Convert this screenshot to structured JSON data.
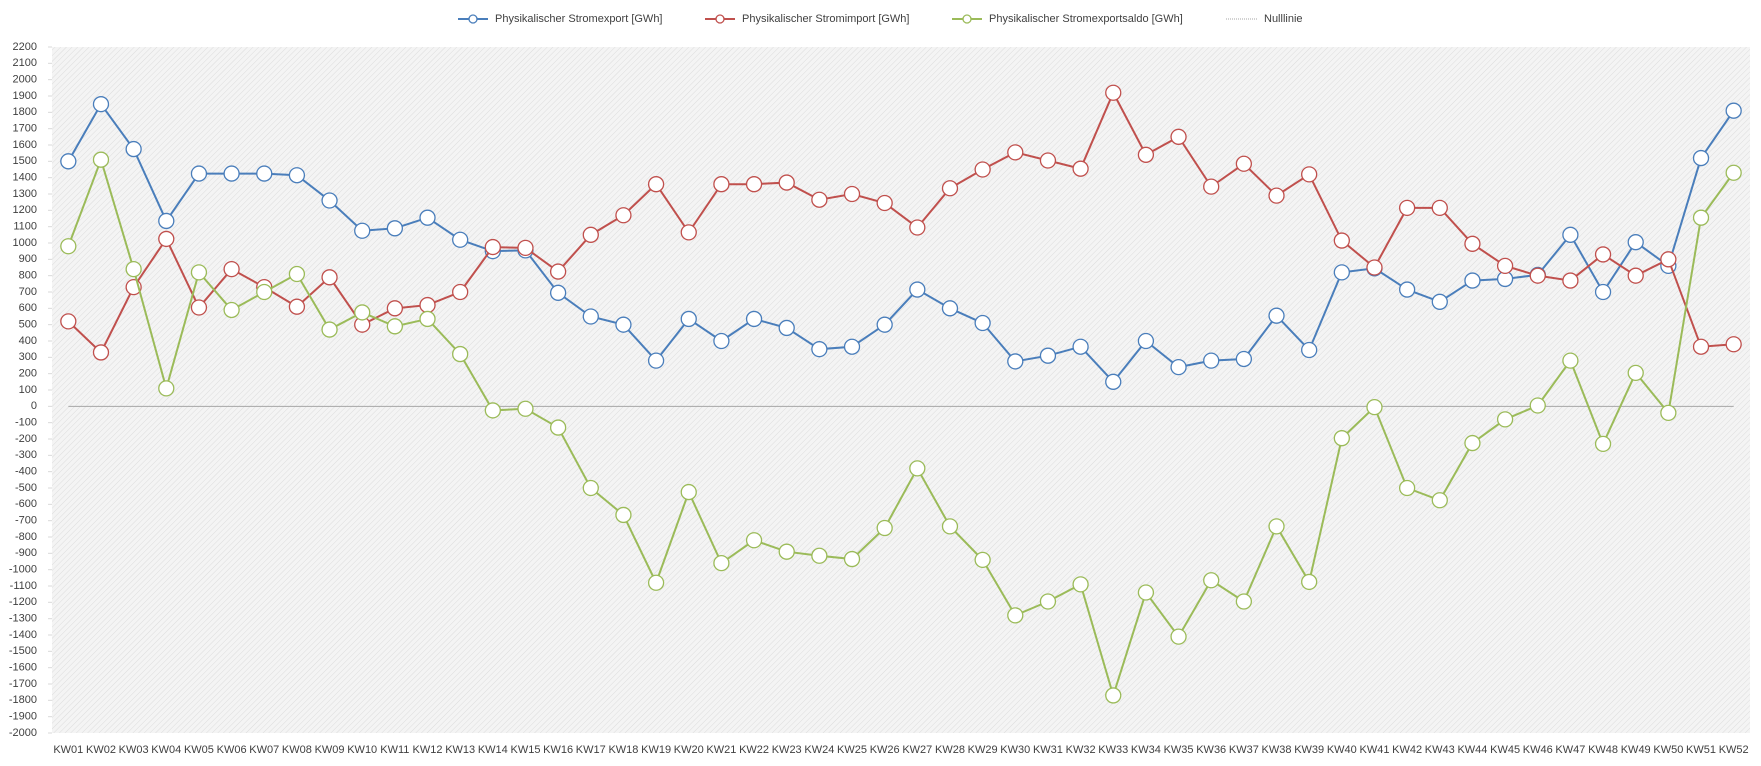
{
  "chart_data": {
    "type": "line",
    "categories": [
      "KW01",
      "KW02",
      "KW03",
      "KW04",
      "KW05",
      "KW06",
      "KW07",
      "KW08",
      "KW09",
      "KW10",
      "KW11",
      "KW12",
      "KW13",
      "KW14",
      "KW15",
      "KW16",
      "KW17",
      "KW18",
      "KW19",
      "KW20",
      "KW21",
      "KW22",
      "KW23",
      "KW24",
      "KW25",
      "KW26",
      "KW27",
      "KW28",
      "KW29",
      "KW30",
      "KW31",
      "KW32",
      "KW33",
      "KW34",
      "KW35",
      "KW36",
      "KW37",
      "KW38",
      "KW39",
      "KW40",
      "KW41",
      "KW42",
      "KW43",
      "KW44",
      "KW45",
      "KW46",
      "KW47",
      "KW48",
      "KW49",
      "KW50",
      "KW51",
      "KW52"
    ],
    "series": [
      {
        "name": "Physikalischer Stromexport [GWh]",
        "color": "#4a7ebb",
        "values": [
          1500,
          1850,
          1575,
          1135,
          1425,
          1425,
          1425,
          1415,
          1260,
          1075,
          1090,
          1155,
          1020,
          950,
          955,
          695,
          550,
          500,
          280,
          535,
          400,
          535,
          480,
          350,
          365,
          500,
          715,
          600,
          510,
          275,
          310,
          365,
          150,
          400,
          240,
          280,
          290,
          555,
          345,
          820,
          845,
          715,
          640,
          770,
          780,
          805,
          1050,
          700,
          1005,
          860,
          1520,
          1810
        ]
      },
      {
        "name": "Physikalischer Stromimport [GWh]",
        "color": "#c0504d",
        "values": [
          520,
          330,
          730,
          1025,
          605,
          840,
          730,
          610,
          790,
          500,
          600,
          620,
          700,
          975,
          970,
          825,
          1050,
          1170,
          1360,
          1065,
          1360,
          1360,
          1370,
          1265,
          1300,
          1245,
          1095,
          1335,
          1450,
          1555,
          1505,
          1455,
          1920,
          1540,
          1650,
          1345,
          1485,
          1290,
          1420,
          1015,
          850,
          1215,
          1215,
          995,
          860,
          800,
          770,
          930,
          800,
          900,
          365,
          380
        ]
      },
      {
        "name": "Physikalischer Stromexportsaldo [GWh]",
        "color": "#9bbb59",
        "values": [
          980,
          1510,
          840,
          110,
          820,
          590,
          700,
          810,
          470,
          575,
          490,
          535,
          320,
          -25,
          -15,
          -130,
          -500,
          -665,
          -1080,
          -525,
          -960,
          -820,
          -890,
          -915,
          -935,
          -745,
          -380,
          -735,
          -940,
          -1280,
          -1195,
          -1090,
          -1770,
          -1140,
          -1410,
          -1065,
          -1195,
          -735,
          -1075,
          -195,
          -5,
          -500,
          -575,
          -225,
          -80,
          5,
          280,
          -230,
          205,
          -40,
          1155,
          1430
        ]
      }
    ],
    "reference_line": {
      "name": "Nulllinie",
      "value": 0,
      "color": "#a6a6a6"
    },
    "ylim": [
      -2000,
      2200
    ],
    "yticks": [
      -2000,
      -1900,
      -1800,
      -1700,
      -1600,
      -1500,
      -1400,
      -1300,
      -1200,
      -1100,
      -1000,
      -900,
      -800,
      -700,
      -600,
      -500,
      -400,
      -300,
      -200,
      -100,
      0,
      100,
      200,
      300,
      400,
      500,
      600,
      700,
      800,
      900,
      1000,
      1100,
      1200,
      1300,
      1400,
      1500,
      1600,
      1700,
      1800,
      1900,
      2000,
      2100,
      2200
    ],
    "legend": "top"
  }
}
